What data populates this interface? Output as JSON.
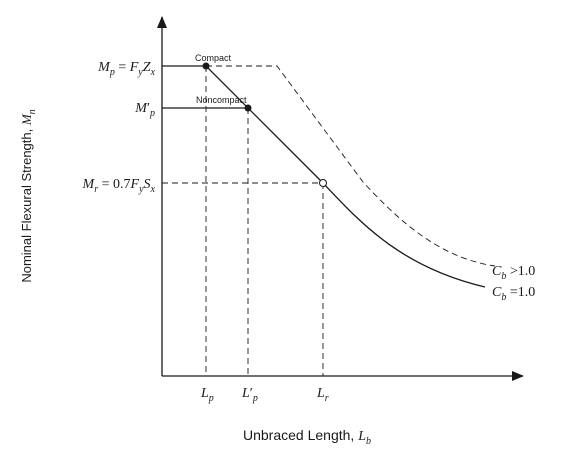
{
  "labels": {
    "y_axis_title": "Nominal Flexural Strength, ",
    "y_axis_var": "M",
    "y_axis_sub": "n",
    "x_axis_title": "Unbraced Length, ",
    "x_axis_var": "L",
    "x_axis_sub": "b",
    "compact": "Compact",
    "noncompact": "Noncompact"
  },
  "y_ticks": {
    "mp": {
      "M": "M",
      "p": "p",
      "eq": " = ",
      "F": "F",
      "y": "y",
      "Z": "Z",
      "x": "x"
    },
    "mp_prime": {
      "M": "M",
      "p": "p",
      "prime": "′"
    },
    "mr": {
      "M": "M",
      "r": "r",
      "eq": " = 0.7",
      "F": "F",
      "y": "y",
      "S": "S",
      "x": "x"
    }
  },
  "x_ticks": {
    "lp": {
      "L": "L",
      "p": "p"
    },
    "lp_prime": {
      "L": "L",
      "p": "p",
      "prime": "′"
    },
    "lr": {
      "L": "L",
      "r": "r"
    }
  },
  "curve_labels": {
    "cb_gt": {
      "C": "C",
      "b": "b",
      "rel": " >1.0"
    },
    "cb_eq": {
      "C": "C",
      "b": "b",
      "rel": " =1.0"
    }
  }
}
